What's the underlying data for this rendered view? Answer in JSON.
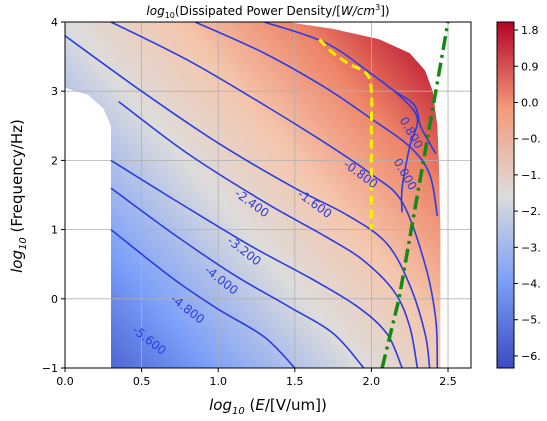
{
  "chart_data": {
    "type": "contour",
    "title_prefix": "log",
    "title_sub": "10",
    "title_main": "(Dissipated Power Density/[",
    "title_unit_w": "W",
    "title_unit_cm": "/cm",
    "title_unit_exp": "3",
    "title_suffix": "])",
    "xlabel_prefix": "log",
    "xlabel_sub": "10",
    "xlabel_var": "E",
    "xlabel_unit": "/[V/um])",
    "xlabel_open": " (",
    "ylabel_prefix": "log",
    "ylabel_sub": "10",
    "ylabel_main": " (Frequency/Hz)",
    "xlim": [
      0,
      2.65
    ],
    "ylim": [
      -1,
      4
    ],
    "x_ticks": [
      0.0,
      0.5,
      1.0,
      1.5,
      2.0,
      2.5
    ],
    "x_tick_labels": [
      "0.0",
      "0.5",
      "1.0",
      "1.5",
      "2.0",
      "2.5"
    ],
    "y_ticks": [
      -1,
      0,
      1,
      2,
      3,
      4
    ],
    "y_tick_labels": [
      "−1",
      "0",
      "1",
      "2",
      "3",
      "4"
    ],
    "grid": true,
    "colormap": "coolwarm",
    "colorbar_ticks": [
      1.8,
      0.9,
      0.0,
      -0.9,
      -1.8,
      -2.7,
      -3.6,
      -4.5,
      -5.4,
      -6.3
    ],
    "colorbar_tick_labels": [
      "1.8",
      "0.9",
      "0.0",
      "−0.",
      "−1.",
      "−2.",
      "−3.",
      "−4.",
      "−5.",
      "−6."
    ],
    "color_range": [
      -6.6,
      2.0
    ],
    "contour_levels": [
      {
        "level": -5.6,
        "label": "-5.600",
        "points": [
          [
            0.3,
            1.0
          ],
          [
            0.7,
            0.3
          ],
          [
            1.0,
            -0.15
          ],
          [
            1.3,
            -0.55
          ],
          [
            1.5,
            -1.0
          ]
        ],
        "label_at": [
          0.55,
          -0.6
        ],
        "label_angle": 38
      },
      {
        "level": -4.8,
        "label": "-4.800",
        "points": [
          [
            0.3,
            1.6
          ],
          [
            0.7,
            0.95
          ],
          [
            1.1,
            0.35
          ],
          [
            1.45,
            -0.1
          ],
          [
            1.75,
            -0.5
          ],
          [
            1.95,
            -1.0
          ]
        ],
        "label_at": [
          0.8,
          -0.15
        ],
        "label_angle": 38
      },
      {
        "level": -4.0,
        "label": "-4.000",
        "points": [
          [
            0.3,
            2.0
          ],
          [
            0.7,
            1.45
          ],
          [
            1.2,
            0.78
          ],
          [
            1.6,
            0.3
          ],
          [
            1.9,
            -0.1
          ],
          [
            2.1,
            -0.5
          ],
          [
            2.2,
            -1.0
          ]
        ],
        "label_at": [
          1.02,
          0.27
        ],
        "label_angle": 38
      },
      {
        "level": -3.2,
        "label": "-3.200",
        "points": [
          [
            0.35,
            2.85
          ],
          [
            0.8,
            2.1
          ],
          [
            1.3,
            1.4
          ],
          [
            1.7,
            0.9
          ],
          [
            1.95,
            0.55
          ],
          [
            2.15,
            0.1
          ],
          [
            2.25,
            -0.4
          ],
          [
            2.3,
            -1.0
          ]
        ],
        "label_at": [
          1.17,
          0.69
        ],
        "label_angle": 38
      },
      {
        "level": -2.4,
        "label": "-2.400",
        "points": [
          [
            0.0,
            3.8
          ],
          [
            0.5,
            3.0
          ],
          [
            1.0,
            2.25
          ],
          [
            1.5,
            1.6
          ],
          [
            1.85,
            1.2
          ],
          [
            2.1,
            0.8
          ],
          [
            2.25,
            0.2
          ],
          [
            2.35,
            -0.5
          ],
          [
            2.38,
            -1.0
          ]
        ],
        "label_at": [
          1.22,
          1.38
        ],
        "label_angle": 36
      },
      {
        "level": -1.6,
        "label": "-1.600",
        "points": [
          [
            0.3,
            4.0
          ],
          [
            0.8,
            3.45
          ],
          [
            1.3,
            2.8
          ],
          [
            1.7,
            2.25
          ],
          [
            2.0,
            1.8
          ],
          [
            2.2,
            1.4
          ],
          [
            2.35,
            0.5
          ],
          [
            2.42,
            -0.3
          ],
          [
            2.43,
            -1.0
          ]
        ],
        "label_at": [
          1.63,
          1.37
        ],
        "label_angle": 36
      },
      {
        "level": -0.8,
        "label": "-0.800",
        "points": [
          [
            0.85,
            4.0
          ],
          [
            1.3,
            3.55
          ],
          [
            1.7,
            3.05
          ],
          [
            2.0,
            2.6
          ],
          [
            2.25,
            2.2
          ],
          [
            2.38,
            1.8
          ],
          [
            2.43,
            1.2
          ]
        ],
        "label_at": [
          1.93,
          1.8
        ],
        "label_angle": 36
      },
      {
        "level": 0.0,
        "label": "0.000",
        "points": [
          [
            1.3,
            4.0
          ],
          [
            1.7,
            3.7
          ],
          [
            2.0,
            3.25
          ],
          [
            2.2,
            2.9
          ],
          [
            2.3,
            2.6
          ],
          [
            2.25,
            2.2
          ],
          [
            2.2,
            1.6
          ],
          [
            2.2,
            1.25
          ]
        ],
        "label_at": [
          2.22,
          1.8
        ],
        "label_angle": 60
      },
      {
        "level": 0.8,
        "label": "0.800",
        "points": [
          [
            2.15,
            3.0
          ],
          [
            2.28,
            2.8
          ],
          [
            2.32,
            2.5
          ],
          [
            2.38,
            2.25
          ],
          [
            2.42,
            2.1
          ]
        ],
        "label_at": [
          2.26,
          2.4
        ],
        "label_angle": 60
      }
    ],
    "dashed_contour_yellow": [
      [
        1.66,
        3.75
      ],
      [
        1.75,
        3.55
      ],
      [
        1.85,
        3.4
      ],
      [
        1.97,
        3.25
      ],
      [
        2.0,
        3.0
      ],
      [
        2.0,
        2.5
      ],
      [
        2.0,
        2.0
      ],
      [
        2.0,
        1.5
      ],
      [
        2.0,
        1.0
      ]
    ],
    "dashdot_line_green": [
      [
        2.07,
        -1.0
      ],
      [
        2.18,
        0.0
      ],
      [
        2.3,
        1.5
      ],
      [
        2.42,
        3.0
      ],
      [
        2.5,
        4.0
      ]
    ],
    "domain_left_boundary": [
      [
        0.3,
        -1.0
      ],
      [
        0.3,
        2.5
      ],
      [
        0.25,
        2.75
      ],
      [
        0.15,
        2.95
      ],
      [
        0.0,
        3.05
      ]
    ],
    "domain_right_boundary": [
      [
        1.45,
        4.0
      ],
      [
        1.75,
        3.9
      ],
      [
        2.05,
        3.75
      ],
      [
        2.25,
        3.55
      ],
      [
        2.35,
        3.3
      ],
      [
        2.4,
        3.0
      ],
      [
        2.43,
        2.5
      ],
      [
        2.44,
        2.0
      ],
      [
        2.45,
        1.0
      ],
      [
        2.45,
        0.0
      ],
      [
        2.45,
        -1.0
      ]
    ]
  }
}
